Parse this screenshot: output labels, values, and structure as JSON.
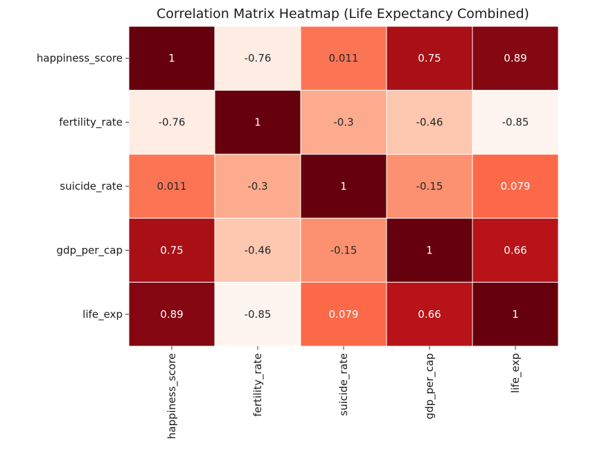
{
  "chart_data": {
    "type": "heatmap",
    "title": "Correlation Matrix Heatmap (Life Expectancy Combined)",
    "row_labels": [
      "happiness_score",
      "fertility_rate",
      "suicide_rate",
      "gdp_per_cap",
      "life_exp"
    ],
    "col_labels": [
      "happiness_score",
      "fertility_rate",
      "suicide_rate",
      "gdp_per_cap",
      "life_exp"
    ],
    "values": [
      [
        1,
        -0.76,
        0.011,
        0.75,
        0.89
      ],
      [
        -0.76,
        1,
        -0.3,
        -0.46,
        -0.85
      ],
      [
        0.011,
        -0.3,
        1,
        -0.15,
        0.079
      ],
      [
        0.75,
        -0.46,
        -0.15,
        1,
        0.66
      ],
      [
        0.89,
        -0.85,
        0.079,
        0.66,
        1
      ]
    ],
    "value_labels": [
      [
        "1",
        "-0.76",
        "0.011",
        "0.75",
        "0.89"
      ],
      [
        "-0.76",
        "1",
        "-0.3",
        "-0.46",
        "-0.85"
      ],
      [
        "0.011",
        "-0.3",
        "1",
        "-0.15",
        "0.079"
      ],
      [
        "0.75",
        "-0.46",
        "-0.15",
        "1",
        "0.66"
      ],
      [
        "0.89",
        "-0.85",
        "0.079",
        "0.66",
        "1"
      ]
    ],
    "vmin": -0.85,
    "vmax": 1,
    "colormap": "Reds",
    "colorbar": false,
    "cell_border_color": "#ffffff"
  }
}
